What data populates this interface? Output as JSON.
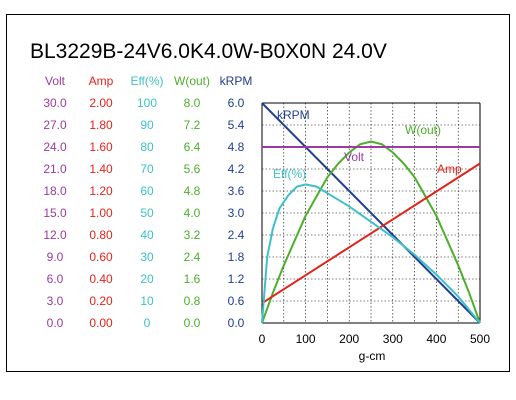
{
  "title": "BL3229B-24V6.0K4.0W-B0X0N   24.0V",
  "chart_data": {
    "type": "line",
    "xlabel": "g-cm",
    "xlim": [
      0,
      500
    ],
    "x_ticks": [
      "0",
      "100",
      "200",
      "300",
      "400",
      "500"
    ],
    "columns": [
      {
        "key": "volt",
        "header": "Volt",
        "color": "#9b3aa0",
        "values": [
          "30.0",
          "27.0",
          "24.0",
          "21.0",
          "18.0",
          "15.0",
          "12.0",
          "9.0",
          "6.0",
          "3.0",
          "0.0"
        ]
      },
      {
        "key": "amp",
        "header": "Amp",
        "color": "#e2231a",
        "values": [
          "2.00",
          "1.80",
          "1.60",
          "1.40",
          "1.20",
          "1.00",
          "0.80",
          "0.60",
          "0.40",
          "0.20",
          "0.00"
        ]
      },
      {
        "key": "eff",
        "header": "Eff(%)",
        "color": "#3ec0c8",
        "values": [
          "100",
          "90",
          "80",
          "70",
          "60",
          "50",
          "40",
          "30",
          "20",
          "10",
          "0"
        ]
      },
      {
        "key": "wout",
        "header": "W(out)",
        "color": "#4caf2a",
        "values": [
          "8.0",
          "7.2",
          "6.4",
          "5.6",
          "4.8",
          "4.0",
          "3.2",
          "2.4",
          "1.6",
          "0.8",
          "0.0"
        ]
      },
      {
        "key": "krpm",
        "header": "kRPM",
        "color": "#1f3f8f",
        "values": [
          "6.0",
          "5.4",
          "4.8",
          "4.2",
          "3.6",
          "3.0",
          "2.4",
          "1.8",
          "1.2",
          "0.6",
          "0.0"
        ]
      }
    ],
    "series": [
      {
        "name": "kRPM",
        "color": "#1f3f8f",
        "scale_max": 6.0,
        "x": [
          0,
          500
        ],
        "y": [
          6.0,
          0.0
        ]
      },
      {
        "name": "W(out)",
        "color": "#4caf2a",
        "scale_max": 8.0,
        "x": [
          0,
          25,
          50,
          75,
          100,
          125,
          150,
          175,
          200,
          225,
          250,
          275,
          300,
          325,
          350,
          375,
          400,
          425,
          450,
          475,
          500
        ],
        "y": [
          0.0,
          1.1,
          2.1,
          3.0,
          3.9,
          4.6,
          5.3,
          5.8,
          6.2,
          6.5,
          6.6,
          6.5,
          6.2,
          5.8,
          5.3,
          4.6,
          3.9,
          3.0,
          2.1,
          1.1,
          0.0
        ]
      },
      {
        "name": "Volt",
        "color": "#9b3aa0",
        "scale_max": 30.0,
        "x": [
          0,
          500
        ],
        "y": [
          24.0,
          24.0
        ]
      },
      {
        "name": "Amp",
        "color": "#e2231a",
        "scale_max": 2.0,
        "x": [
          0,
          500
        ],
        "y": [
          0.18,
          1.45
        ]
      },
      {
        "name": "Eff(%)",
        "color": "#3ec0c8",
        "scale_max": 100,
        "x": [
          0,
          12,
          25,
          40,
          60,
          80,
          100,
          125,
          150,
          200,
          250,
          300,
          350,
          400,
          450,
          500
        ],
        "y": [
          0,
          30,
          43,
          52,
          58,
          62,
          63,
          62,
          59,
          53,
          46,
          39,
          31,
          22,
          12,
          0
        ]
      }
    ]
  }
}
